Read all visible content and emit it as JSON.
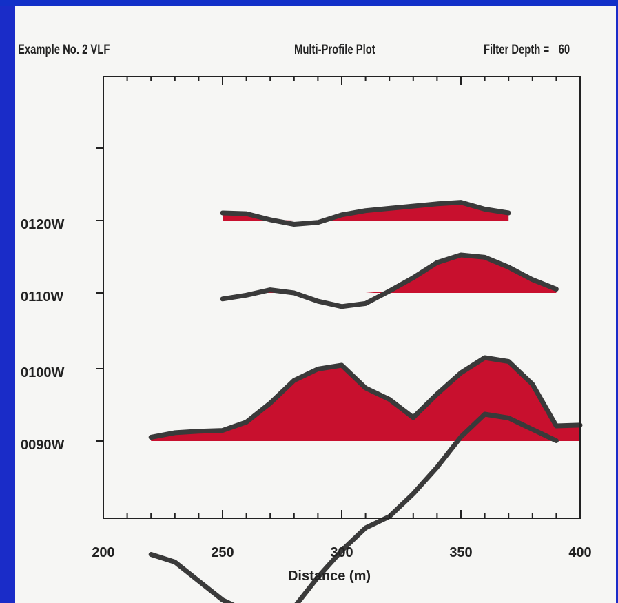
{
  "header": {
    "left": "Example No. 2 VLF",
    "center": "Multi-Profile Plot",
    "right_label": "Filter Depth =",
    "right_value": "60"
  },
  "colors": {
    "fill": "#c8102e",
    "line": "#3a3a3a",
    "background_frame": "#1a2cc8"
  },
  "chart_data": {
    "type": "area",
    "title": "Multi-Profile Plot",
    "xlabel": "Distance (m)",
    "ylabel": "",
    "xlim": [
      200,
      400
    ],
    "x_ticks": [
      "200",
      "250",
      "300",
      "350",
      "400"
    ],
    "profile_labels": [
      "0120W",
      "0110W",
      "0100W",
      "0090W"
    ],
    "grid": false,
    "fill_positive": true,
    "series": [
      {
        "name": "0120W",
        "x": [
          250,
          260,
          270,
          280,
          290,
          300,
          310,
          320,
          330,
          340,
          350,
          360,
          370
        ],
        "y": [
          0.2,
          0.18,
          0.02,
          -0.1,
          -0.05,
          0.15,
          0.26,
          0.32,
          0.38,
          0.44,
          0.48,
          0.3,
          0.2
        ]
      },
      {
        "name": "0110W",
        "x": [
          250,
          260,
          270,
          280,
          290,
          300,
          310,
          320,
          330,
          340,
          350,
          360,
          370,
          380,
          390
        ],
        "y": [
          -0.16,
          -0.06,
          0.08,
          0.0,
          -0.22,
          -0.36,
          -0.28,
          0.05,
          0.4,
          0.8,
          1.0,
          0.94,
          0.68,
          0.35,
          0.1
        ]
      },
      {
        "name": "0100W",
        "x": [
          220,
          230,
          240,
          250,
          260,
          270,
          280,
          290,
          300,
          310,
          320,
          330,
          340,
          350,
          360,
          370,
          380,
          390
        ],
        "y": [
          -4.9,
          -5.1,
          -5.6,
          -6.1,
          -6.4,
          -6.4,
          -6.3,
          -5.5,
          -4.8,
          -4.2,
          -3.9,
          -3.3,
          -2.6,
          -1.8,
          -1.2,
          -1.3,
          -1.6,
          -1.9
        ]
      },
      {
        "name": "0090W",
        "x": [
          220,
          230,
          240,
          250,
          260,
          270,
          280,
          290,
          300,
          310,
          320,
          330,
          340,
          350,
          360,
          370,
          380,
          390,
          400
        ],
        "y": [
          0.1,
          0.22,
          0.26,
          0.28,
          0.5,
          1.0,
          1.6,
          1.9,
          2.0,
          1.4,
          1.1,
          0.62,
          1.24,
          1.8,
          2.2,
          2.1,
          1.5,
          0.4,
          0.42
        ]
      }
    ]
  }
}
